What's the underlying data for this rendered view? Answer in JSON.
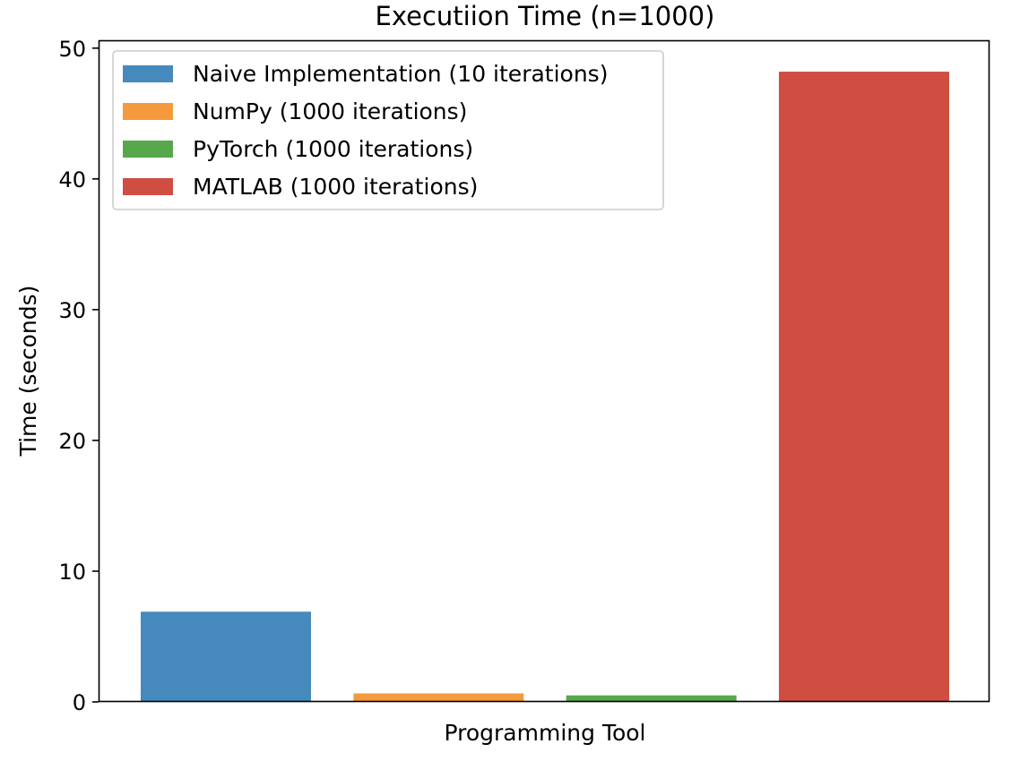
{
  "chart_data": {
    "type": "bar",
    "title": "Executiion Time (n=1000)",
    "xlabel": "Programming Tool",
    "ylabel": "Time (seconds)",
    "ylim": [
      0,
      50.6
    ],
    "yticks": [
      0,
      10,
      20,
      30,
      40,
      50
    ],
    "grid": false,
    "legend_position": "top-left",
    "series": [
      {
        "name": "Naive Implementation (10 iterations)",
        "value": 6.9,
        "color": "#4689bd"
      },
      {
        "name": "NumPy (1000 iterations)",
        "value": 0.65,
        "color": "#f59a3c"
      },
      {
        "name": "PyTorch (1000 iterations)",
        "value": 0.5,
        "color": "#57a84b"
      },
      {
        "name": "MATLAB (1000 iterations)",
        "value": 48.2,
        "color": "#d04e41"
      }
    ]
  }
}
